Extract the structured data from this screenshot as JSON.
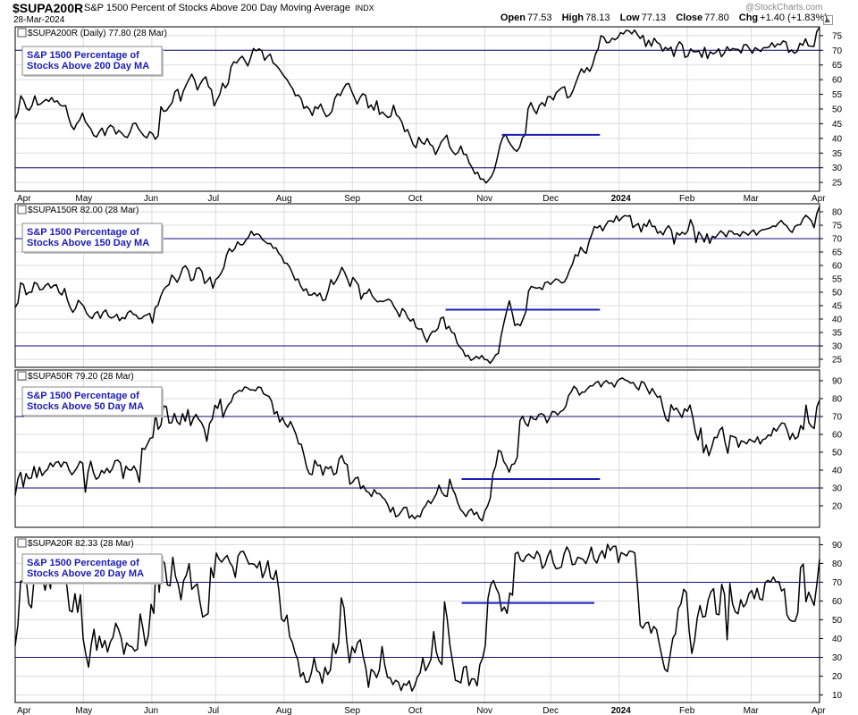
{
  "header": {
    "symbol": "$SUPA200R",
    "description": "S&P 1500 Percent of Stocks Above 200 Day Moving Average",
    "exchange": "INDX",
    "date": "28-Mar-2024",
    "watermark": "@StockCharts.com",
    "open_label": "Open",
    "open": "77.53",
    "high_label": "High",
    "high": "78.13",
    "low_label": "Low",
    "low": "77.13",
    "close_label": "Close",
    "close": "77.80",
    "chg_label": "Chg",
    "chg": "+1.40 (+1.83%)",
    "scroll_icon": "triangle-up-icon"
  },
  "colors": {
    "line": "#000000",
    "reference": "#0d0d7a",
    "annotation": "#1c1cb8",
    "grid": "#dcdcdc",
    "pattern": "#1c1cb8"
  },
  "x_axis": {
    "months": [
      "Apr",
      "May",
      "Jun",
      "Jul",
      "Aug",
      "Sep",
      "Oct",
      "Nov",
      "Dec",
      "2024",
      "Feb",
      "Mar",
      "Apr"
    ],
    "bold_months": [
      "2024"
    ]
  },
  "chart_data": [
    {
      "type": "line",
      "title": "$SUPA200R (Daily) 77.80 (28 Mar)",
      "annotation": [
        "S&P 1500 Percentage of",
        "Stocks Above 200 Day MA"
      ],
      "yticks": [
        25,
        30,
        35,
        40,
        45,
        50,
        55,
        60,
        65,
        70,
        75
      ],
      "ylim": [
        22,
        78
      ],
      "reference_lines": [
        70,
        30
      ],
      "pattern_lines": [
        {
          "from": 0.605,
          "to": 0.727,
          "y": 41.2
        }
      ],
      "x_start": "2023-03-28",
      "x_end": "2024-03-28",
      "values": [
        46.5,
        48.9,
        54.5,
        53.0,
        50.2,
        49.6,
        51.2,
        54.5,
        51.4,
        51.7,
        52.5,
        53.3,
        52.6,
        53.9,
        52.4,
        52.8,
        51.4,
        51.0,
        51.2,
        47.3,
        44.3,
        43.0,
        45.1,
        46.3,
        48.6,
        45.8,
        44.4,
        43.2,
        41.0,
        40.5,
        42.2,
        43.5,
        41.0,
        43.5,
        44.5,
        43.8,
        41.5,
        42.7,
        41.8,
        40.7,
        40.3,
        42.2,
        45.0,
        45.2,
        43.3,
        42.0,
        40.8,
        40.2,
        42.3,
        41.6,
        39.7,
        40.9,
        50.8,
        49.2,
        49.5,
        50.9,
        52.2,
        55.9,
        56.7,
        52.7,
        56.1,
        58.2,
        60.1,
        61.9,
        59.9,
        56.5,
        58.5,
        60.1,
        61.0,
        57.6,
        56.6,
        51.1,
        53.1,
        55.0,
        58.8,
        57.2,
        58.7,
        64.3,
        66.1,
        65.7,
        67.1,
        68.0,
        66.4,
        64.7,
        67.4,
        70.6,
        69.8,
        70.5,
        69.8,
        66.6,
        67.9,
        68.7,
        65.7,
        65.0,
        63.9,
        62.5,
        61.1,
        60.0,
        58.3,
        56.9,
        54.5,
        54.8,
        53.6,
        50.2,
        50.9,
        49.9,
        47.8,
        50.8,
        50.1,
        51.7,
        49.3,
        47.4,
        48.0,
        49.2,
        53.5,
        55.2,
        54.6,
        56.7,
        58.4,
        58.7,
        56.2,
        54.0,
        51.7,
        53.8,
        55.2,
        54.7,
        50.4,
        51.4,
        49.6,
        52.8,
        48.2,
        49.0,
        48.0,
        47.1,
        47.5,
        51.3,
        48.0,
        47.2,
        45.5,
        42.3,
        43.0,
        40.5,
        37.9,
        36.8,
        40.4,
        38.7,
        38.0,
        40.0,
        38.0,
        37.3,
        34.5,
        36.5,
        38.8,
        39.9,
        41.1,
        37.2,
        35.6,
        34.5,
        35.2,
        37.4,
        34.6,
        34.5,
        31.6,
        30.1,
        27.9,
        28.5,
        26.1,
        26.2,
        24.8,
        25.9,
        27.2,
        29.4,
        33.3,
        37.7,
        40.4,
        41.3,
        39.1,
        37.6,
        36.3,
        35.6,
        37.0,
        40.3,
        41.2,
        50.1,
        52.2,
        49.9,
        48.4,
        51.2,
        52.2,
        51.0,
        54.2,
        54.2,
        53.1,
        55.5,
        56.4,
        57.2,
        57.6,
        53.8,
        54.3,
        56.2,
        58.9,
        61.4,
        63.7,
        62.4,
        64.1,
        62.8,
        65.0,
        68.6,
        70.5,
        75.0,
        74.5,
        72.6,
        72.7,
        74.1,
        73.6,
        74.3,
        76.0,
        75.6,
        76.8,
        76.6,
        75.6,
        76.9,
        75.4,
        74.0,
        75.1,
        71.3,
        73.4,
        71.4,
        74.1,
        72.7,
        72.1,
        69.7,
        71.0,
        70.2,
        71.1,
        67.9,
        71.1,
        72.9,
        71.9,
        67.6,
        68.0,
        70.5,
        69.5,
        69.5,
        69.7,
        67.6,
        71.0,
        67.2,
        69.5,
        68.8,
        69.3,
        70.5,
        67.8,
        69.0,
        71.2,
        69.9,
        70.6,
        70.4,
        70.3,
        69.1,
        71.9,
        71.9,
        70.5,
        69.0,
        70.9,
        70.3,
        69.6,
        70.9,
        70.9,
        71.1,
        72.6,
        71.1,
        72.2,
        71.9,
        73.2,
        72.8,
        69.3,
        70.1,
        69.0,
        69.6,
        72.4,
        71.7,
        73.9,
        71.5,
        71.4,
        71.3,
        76.4,
        77.8
      ]
    },
    {
      "type": "line",
      "title": "$SUPA150R 82.00 (28 Mar)",
      "annotation": [
        "S&P 1500 Percentage of",
        "Stocks Above 150 Day MA"
      ],
      "yticks": [
        25,
        30,
        35,
        40,
        45,
        50,
        55,
        60,
        65,
        70,
        75,
        80
      ],
      "ylim": [
        22,
        83
      ],
      "reference_lines": [
        70,
        30
      ],
      "pattern_lines": [
        {
          "from": 0.535,
          "to": 0.727,
          "y": 43.5
        }
      ],
      "x_start": "2023-03-28",
      "x_end": "2024-03-28",
      "values": [
        44.3,
        46.1,
        53.5,
        52.9,
        49.1,
        50.0,
        50.0,
        53.7,
        53.1,
        50.9,
        51.1,
        52.5,
        53.3,
        51.6,
        52.5,
        52.8,
        49.9,
        49.0,
        51.4,
        47.2,
        44.4,
        42.5,
        44.0,
        47.0,
        45.9,
        44.7,
        42.2,
        40.9,
        40.2,
        42.1,
        42.8,
        40.3,
        42.5,
        43.4,
        41.0,
        40.4,
        40.8,
        41.8,
        39.4,
        40.6,
        40.1,
        42.4,
        43.1,
        41.8,
        41.5,
        40.1,
        40.2,
        41.2,
        41.6,
        42.1,
        38.5,
        44.3,
        45.1,
        48.5,
        50.9,
        52.1,
        52.8,
        56.4,
        55.3,
        53.7,
        55.9,
        59.0,
        59.9,
        58.3,
        54.3,
        54.8,
        58.8,
        59.2,
        57.8,
        53.3,
        54.3,
        55.6,
        51.5,
        54.7,
        55.6,
        57.1,
        59.2,
        63.9,
        66.3,
        65.1,
        66.3,
        68.8,
        67.7,
        67.8,
        69.4,
        70.6,
        72.8,
        71.2,
        71.8,
        71.4,
        69.7,
        68.9,
        68.1,
        68.2,
        66.4,
        66.6,
        64.5,
        63.4,
        60.9,
        60.8,
        59.3,
        57.0,
        54.5,
        55.0,
        52.3,
        50.6,
        51.3,
        48.9,
        49.0,
        49.8,
        48.6,
        49.7,
        46.9,
        47.2,
        50.5,
        54.7,
        52.9,
        54.5,
        56.6,
        59.3,
        57.4,
        54.9,
        52.1,
        55.5,
        54.2,
        52.8,
        47.4,
        49.5,
        49.6,
        51.2,
        48.7,
        47.4,
        46.4,
        46.7,
        46.5,
        47.0,
        47.4,
        46.7,
        44.6,
        43.0,
        40.8,
        43.9,
        42.8,
        40.5,
        39.2,
        40.1,
        36.9,
        36.2,
        36.4,
        33.5,
        31.4,
        33.9,
        35.4,
        35.4,
        36.5,
        40.3,
        40.7,
        36.3,
        37.3,
        35.1,
        34.6,
        31.0,
        29.5,
        28.5,
        26.1,
        26.5,
        24.6,
        25.2,
        26.1,
        25.3,
        26.4,
        24.9,
        24.8,
        23.5,
        24.9,
        26.6,
        27.2,
        33.7,
        38.5,
        42.9,
        46.8,
        42.5,
        37.6,
        38.2,
        37.5,
        40.1,
        42.7,
        50.4,
        52.2,
        51.8,
        51.5,
        51.8,
        51.0,
        53.6,
        53.9,
        52.9,
        54.0,
        55.0,
        54.5,
        53.5,
        53.8,
        55.6,
        58.4,
        60.5,
        64.0,
        63.5,
        66.8,
        65.3,
        64.5,
        68.8,
        71.5,
        74.5,
        74.0,
        74.9,
        72.9,
        74.9,
        76.5,
        76.7,
        76.2,
        78.5,
        76.6,
        77.8,
        78.6,
        78.4,
        78.6,
        74.1,
        75.0,
        75.6,
        72.5,
        75.5,
        74.5,
        77.0,
        74.5,
        74.6,
        72.0,
        72.7,
        71.4,
        73.6,
        74.8,
        73.2,
        68.0,
        72.2,
        71.3,
        72.4,
        71.6,
        72.9,
        77.1,
        74.5,
        68.5,
        72.5,
        71.0,
        68.7,
        71.8,
        68.2,
        70.9,
        70.4,
        71.6,
        72.9,
        72.0,
        70.7,
        72.9,
        72.7,
        71.6,
        71.8,
        70.9,
        72.6,
        72.1,
        71.3,
        72.5,
        73.2,
        71.3,
        72.6,
        73.3,
        73.4,
        73.7,
        74.0,
        74.7,
        74.5,
        75.8,
        76.8,
        75.5,
        74.8,
        73.2,
        72.3,
        74.5,
        75.1,
        75.2,
        77.4,
        78.7,
        77.8,
        76.7,
        74.1,
        79.4,
        82.0
      ]
    },
    {
      "type": "line",
      "title": "$SUPA50R 79.20 (28 Mar)",
      "annotation": [
        "S&P 1500 Percentage of",
        "Stocks Above 50 Day MA"
      ],
      "yticks": [
        20,
        30,
        40,
        50,
        60,
        70,
        80,
        90
      ],
      "ylim": [
        8,
        96
      ],
      "reference_lines": [
        70,
        30
      ],
      "pattern_lines": [
        {
          "from": 0.555,
          "to": 0.727,
          "y": 35
        }
      ],
      "x_start": "2023-03-28",
      "x_end": "2024-03-28",
      "values": [
        25.8,
        35.1,
        38.8,
        30.6,
        38.0,
        35.2,
        35.6,
        42.0,
        35.8,
        41.6,
        37.0,
        39.1,
        40.4,
        44.0,
        41.9,
        44.3,
        44.8,
        41.8,
        44.5,
        44.1,
        40.0,
        37.4,
        39.3,
        41.6,
        44.9,
        43.8,
        27.6,
        39.0,
        45.0,
        38.6,
        34.9,
        36.0,
        39.8,
        38.3,
        41.0,
        38.6,
        40.8,
        45.2,
        45.6,
        44.0,
        35.3,
        42.2,
        40.3,
        39.9,
        42.3,
        39.3,
        33.2,
        52.2,
        51.6,
        54.6,
        57.8,
        58.3,
        71.4,
        62.8,
        65.2,
        75.9,
        75.6,
        66.4,
        66.5,
        71.7,
        67.0,
        65.5,
        71.6,
        67.3,
        73.8,
        64.9,
        68.9,
        71.2,
        68.3,
        66.6,
        63.2,
        56.1,
        66.0,
        68.5,
        76.3,
        74.5,
        79.7,
        69.5,
        73.7,
        76.7,
        78.1,
        82.3,
        83.4,
        84.6,
        84.1,
        86.5,
        86.1,
        84.9,
        84.9,
        84.4,
        86.5,
        86.2,
        82.7,
        81.9,
        81.3,
        78.5,
        71.4,
        72.8,
        66.9,
        69.3,
        66.0,
        64.0,
        67.2,
        63.8,
        60.1,
        54.7,
        54.4,
        48.3,
        41.4,
        37.9,
        37.5,
        45.5,
        42.5,
        42.8,
        37.1,
        41.9,
        40.8,
        42.1,
        37.4,
        38.3,
        46.3,
        48.2,
        44.0,
        43.1,
        32.1,
        33.3,
        35.5,
        36.0,
        29.6,
        31.3,
        28.3,
        27.5,
        25.2,
        29.1,
        26.9,
        26.8,
        24.9,
        23.5,
        20.7,
        16.5,
        19.2,
        13.9,
        14.7,
        16.8,
        19.1,
        19.1,
        13.2,
        14.8,
        12.8,
        14.5,
        13.9,
        18.1,
        20.1,
        22.9,
        21.3,
        23.9,
        26.6,
        31.6,
        27.8,
        25.7,
        25.3,
        34.9,
        29.6,
        26.5,
        21.5,
        17.9,
        16.3,
        14.0,
        17.0,
        18.2,
        15.0,
        16.5,
        13.1,
        11.6,
        17.2,
        19.9,
        24.3,
        38.1,
        42.2,
        51.0,
        50.3,
        44.8,
        42.5,
        38.9,
        43.1,
        43.6,
        47.3,
        67.6,
        70.2,
        66.2,
        64.6,
        70.2,
        68.6,
        68.2,
        71.1,
        71.6,
        70.6,
        66.5,
        69.4,
        72.8,
        72.5,
        70.9,
        72.7,
        73.5,
        75.7,
        81.7,
        83.8,
        86.9,
        85.4,
        82.0,
        83.6,
        83.7,
        85.6,
        87.1,
        87.2,
        88.9,
        89.6,
        86.6,
        88.9,
        90.1,
        88.5,
        88.8,
        86.5,
        89.6,
        91.0,
        91.5,
        90.4,
        89.8,
        88.7,
        89.0,
        86.5,
        84.9,
        89.5,
        88.9,
        85.8,
        82.6,
        85.7,
        83.0,
        80.7,
        81.5,
        74.6,
        68.9,
        67.2,
        76.6,
        73.6,
        74.7,
        72.2,
        69.4,
        74.3,
        72.9,
        76.4,
        69.8,
        61.2,
        56.9,
        63.6,
        49.7,
        54.1,
        48.1,
        52.6,
        58.3,
        58.2,
        62.4,
        64.0,
        55.4,
        49.4,
        59.3,
        58.8,
        58.2,
        52.8,
        56.4,
        55.8,
        54.7,
        57.3,
        56.4,
        55.6,
        58.6,
        54.6,
        57.1,
        57.6,
        59.7,
        59.1,
        63.5,
        61.8,
        64.3,
        66.4,
        66.1,
        62.3,
        57.1,
        60.6,
        57.4,
        58.7,
        64.9,
        62.7,
        76.4,
        66.6,
        64.4,
        63.3,
        75.4,
        79.2
      ]
    },
    {
      "type": "line",
      "title": "$SUPA20R 82.33 (28 Mar)",
      "annotation": [
        "S&P 1500 Percentage of",
        "Stocks Above 20 Day MA"
      ],
      "yticks": [
        10,
        20,
        30,
        40,
        50,
        60,
        70,
        80,
        90
      ],
      "ylim": [
        6,
        94
      ],
      "reference_lines": [
        70,
        30
      ],
      "pattern_lines": [
        {
          "from": 0.555,
          "to": 0.72,
          "y": 59
        }
      ],
      "x_start": "2023-03-28",
      "x_end": "2024-03-28",
      "values": [
        36.2,
        47.3,
        70.6,
        70.6,
        72.2,
        58.5,
        56.4,
        72.4,
        83.7,
        71.1,
        72.4,
        65.7,
        72.6,
        66.6,
        82.6,
        72.8,
        75.8,
        71.2,
        72.8,
        68.2,
        55.0,
        54.2,
        63.9,
        54.0,
        63.4,
        40.0,
        31.6,
        24.8,
        36.9,
        45.0,
        33.8,
        41.3,
        35.2,
        39.0,
        32.9,
        38.2,
        40.8,
        48.2,
        45.0,
        40.4,
        31.6,
        37.7,
        36.1,
        35.6,
        33.4,
        34.4,
        53.1,
        45.5,
        36.1,
        41.8,
        58.2,
        53.4,
        84.1,
        64.7,
        82.4,
        79.9,
        68.6,
        68.1,
        83.3,
        73.1,
        68.8,
        60.7,
        71.0,
        73.8,
        79.9,
        66.2,
        67.9,
        69.1,
        59.4,
        51.5,
        52.4,
        53.3,
        77.7,
        72.4,
        85.5,
        82.3,
        80.7,
        82.8,
        84.2,
        80.5,
        78.3,
        72.6,
        83.9,
        86.3,
        86.4,
        83.1,
        79.7,
        79.9,
        79.5,
        77.6,
        81.1,
        72.4,
        76.0,
        81.4,
        72.5,
        71.4,
        76.3,
        66.0,
        50.4,
        49.1,
        52.5,
        41.0,
        37.9,
        32.4,
        28.7,
        19.6,
        21.9,
        16.7,
        17.1,
        21.8,
        29.6,
        22.9,
        21.9,
        16.2,
        24.8,
        20.9,
        23.3,
        37.5,
        32.0,
        37.4,
        61.7,
        56.3,
        39.0,
        27.1,
        35.7,
        32.5,
        37.9,
        39.4,
        30.9,
        24.6,
        14.1,
        23.6,
        22.4,
        19.2,
        23.3,
        35.8,
        26.0,
        19.4,
        19.1,
        15.5,
        17.8,
        16.9,
        12.4,
        16.0,
        15.2,
        17.5,
        12.1,
        14.8,
        19.6,
        21.7,
        29.8,
        22.9,
        25.7,
        29.0,
        43.7,
        32.7,
        28.1,
        26.2,
        59.6,
        50.2,
        36.3,
        27.2,
        17.8,
        17.3,
        16.4,
        24.7,
        25.3,
        15.0,
        18.6,
        18.5,
        14.9,
        26.2,
        29.6,
        36.4,
        61.5,
        68.7,
        70.9,
        66.8,
        63.8,
        54.6,
        56.8,
        53.4,
        64.3,
        63.1,
        85.2,
        86.0,
        81.8,
        81.0,
        83.9,
        85.0,
        83.6,
        82.6,
        86.5,
        84.2,
        77.4,
        79.3,
        84.1,
        87.1,
        80.4,
        77.2,
        77.4,
        78.2,
        85.1,
        88.8,
        86.1,
        79.3,
        79.7,
        83.3,
        82.8,
        82.1,
        79.9,
        83.7,
        88.7,
        82.3,
        80.2,
        84.4,
        86.8,
        82.8,
        90.2,
        86.9,
        89.0,
        89.2,
        80.4,
        85.8,
        85.0,
        84.0,
        86.6,
        86.4,
        85.6,
        67.8,
        47.1,
        45.5,
        48.3,
        48.7,
        42.9,
        46.5,
        44.8,
        37.4,
        30.3,
        23.8,
        22.4,
        31.2,
        40.2,
        42.7,
        55.9,
        58.6,
        66.3,
        64.5,
        44.4,
        32.1,
        39.0,
        51.0,
        57.6,
        51.5,
        51.9,
        60.5,
        64.8,
        66.6,
        53.1,
        52.7,
        68.9,
        63.7,
        39.4,
        69.3,
        58.4,
        54.2,
        53.2,
        60.7,
        56.9,
        58.7,
        63.9,
        65.6,
        61.2,
        66.8,
        61.1,
        60.6,
        69.9,
        71.0,
        70.1,
        72.8,
        70.0,
        70.4,
        65.4,
        66.5,
        52.7,
        50.0,
        49.2,
        49.3,
        53.8,
        77.8,
        79.7,
        59.6,
        64.7,
        61.2,
        57.7,
        68.9,
        82.3
      ]
    }
  ]
}
